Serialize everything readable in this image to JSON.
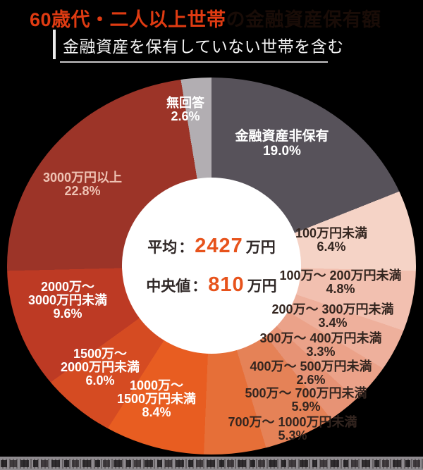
{
  "header": {
    "title_highlight": "60歳代・二人以上世帯",
    "title_rest": "の金融資産保有額",
    "subtitle": "金融資産を保有していない世帯を含む"
  },
  "center": {
    "rows": [
      {
        "label": "平均",
        "separator": "：",
        "value": "2427",
        "unit": "万円"
      },
      {
        "label": "中央値",
        "separator": "：",
        "value": "810",
        "unit": "万円"
      }
    ],
    "value_color": "#e7531c",
    "label_color": "#2f2726"
  },
  "chart_data": {
    "type": "pie",
    "title": "60歳代・二人以上世帯の金融資産保有額",
    "subtitle": "金融資産を保有していない世帯を含む",
    "units": "%",
    "order": "clockwise-from-top",
    "center_stats": {
      "mean_label": "平均",
      "mean_value": "2427万円",
      "median_label": "中央値",
      "median_value": "810万円"
    },
    "segments": [
      {
        "label": "金融資産非保有",
        "value": 19.0,
        "color": "#57525a",
        "label_color": "#ffffff",
        "display": [
          "金融資産非保有",
          "19.0%"
        ]
      },
      {
        "label": "100万円未満",
        "value": 6.4,
        "color": "#f5d3c6",
        "label_color": "#33251f",
        "display": [
          "100万円未満",
          "6.4%"
        ]
      },
      {
        "label": "100万〜200万円未満",
        "value": 4.8,
        "color": "#f2c0b0",
        "label_color": "#33251f",
        "display": [
          "100万〜 200万円未満",
          "4.8%"
        ]
      },
      {
        "label": "200万〜300万円未満",
        "value": 3.4,
        "color": "#eeb09c",
        "label_color": "#33251f",
        "display": [
          "200万〜 300万円未満",
          "3.4%"
        ]
      },
      {
        "label": "300万〜400万円未満",
        "value": 3.3,
        "color": "#eba289",
        "label_color": "#33251f",
        "display": [
          "300万〜 400万円未満",
          "3.3%"
        ]
      },
      {
        "label": "400万〜500万円未満",
        "value": 2.6,
        "color": "#e79375",
        "label_color": "#33251f",
        "display": [
          "400万〜 500万円未満",
          "2.6%"
        ]
      },
      {
        "label": "500万〜700万円未満",
        "value": 5.9,
        "color": "#e58257",
        "label_color": "#33251f",
        "display": [
          "500万〜 700万円未満",
          "5.9%"
        ]
      },
      {
        "label": "700万〜1000万円未満",
        "value": 5.3,
        "color": "#e66f38",
        "label_color": "#33251f",
        "display": [
          "700万〜 1000万円未満",
          "5.3%"
        ]
      },
      {
        "label": "1000万〜1500万円未満",
        "value": 8.4,
        "color": "#e85d21",
        "label_color": "#ffffff",
        "display": [
          "1000万〜",
          "1500万円未満",
          "8.4%"
        ]
      },
      {
        "label": "1500万〜2000万円未満",
        "value": 6.0,
        "color": "#d54b22",
        "label_color": "#ffffff",
        "display": [
          "1500万〜",
          "2000万円未満",
          "6.0%"
        ]
      },
      {
        "label": "2000万〜3000万円未満",
        "value": 9.6,
        "color": "#bd3a24",
        "label_color": "#ffffff",
        "display": [
          "2000万〜",
          "3000万円未満",
          "9.6%"
        ]
      },
      {
        "label": "3000万円以上",
        "value": 22.8,
        "color": "#9c3428",
        "label_color": "#efc3b4",
        "display": [
          "3000万円以上",
          "22.8%"
        ]
      },
      {
        "label": "無回答",
        "value": 2.6,
        "color": "#b2aeb2",
        "label_color": "#ffffff",
        "display": [
          "無回答",
          "2.6%"
        ]
      }
    ]
  }
}
